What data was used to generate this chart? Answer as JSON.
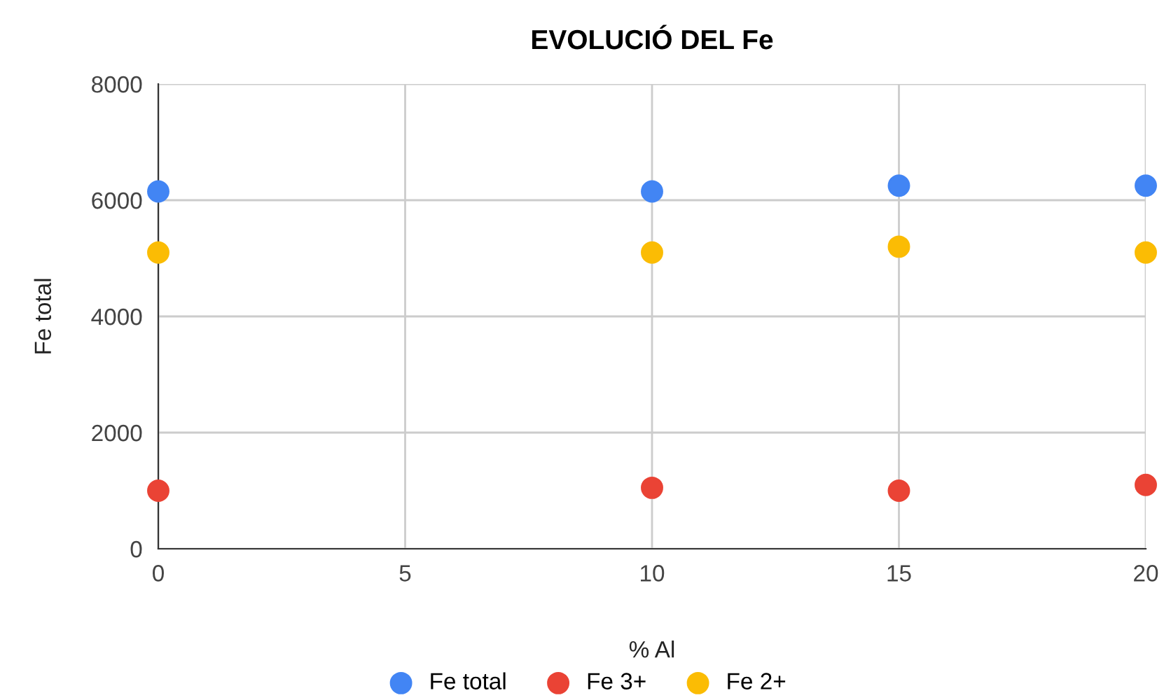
{
  "chart_data": {
    "type": "scatter",
    "title": "EVOLUCIÓ DEL Fe",
    "xlabel": "% Al",
    "ylabel": "Fe total",
    "x": [
      0,
      10,
      15,
      20
    ],
    "series": [
      {
        "name": "Fe total",
        "color": "#4285f4",
        "values": [
          6150,
          6150,
          6250,
          6250
        ]
      },
      {
        "name": "Fe 3+",
        "color": "#ea4335",
        "values": [
          1000,
          1050,
          1000,
          1100
        ]
      },
      {
        "name": "Fe 2+",
        "color": "#fbbc04",
        "values": [
          5100,
          5100,
          5200,
          5100
        ]
      }
    ],
    "xlim": [
      0,
      20
    ],
    "xticks": [
      0,
      5,
      10,
      15,
      20
    ],
    "ylim": [
      0,
      8000
    ],
    "yticks": [
      0,
      2000,
      4000,
      6000,
      8000
    ],
    "grid": true,
    "legend": "bottom",
    "marker": "circle"
  }
}
